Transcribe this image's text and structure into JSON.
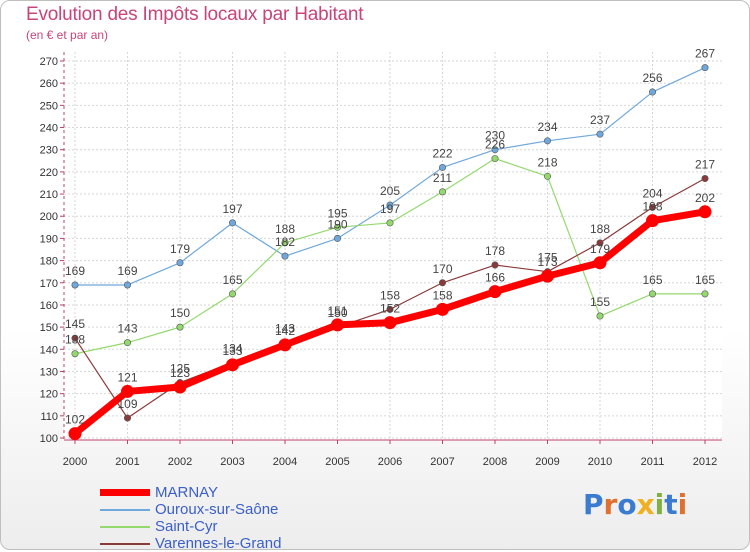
{
  "chart_data": {
    "type": "line",
    "title": "Evolution des Impôts locaux par Habitant",
    "subtitle": "(en € et par an)",
    "xlabel": "",
    "ylabel": "",
    "x": [
      "2000",
      "2001",
      "2002",
      "2003",
      "2004",
      "2005",
      "2006",
      "2007",
      "2008",
      "2009",
      "2010",
      "2011",
      "2012"
    ],
    "ylim": [
      100,
      270
    ],
    "yticks": [
      100,
      110,
      120,
      130,
      140,
      150,
      160,
      170,
      180,
      190,
      200,
      210,
      220,
      230,
      240,
      250,
      260,
      270
    ],
    "grid": true,
    "legend_position": "bottom-left",
    "series": [
      {
        "name": "MARNAY",
        "color": "#ff0000",
        "values": [
          102,
          121,
          123,
          133,
          142,
          151,
          152,
          158,
          166,
          173,
          179,
          198,
          202
        ],
        "labels": [
          "102",
          "121",
          "123",
          "133",
          "142",
          "151",
          "152",
          "158",
          "166",
          "173",
          "179",
          "198",
          "202"
        ]
      },
      {
        "name": "Ouroux-sur-Saône",
        "color": "#6fa8dc",
        "values": [
          169,
          169,
          179,
          197,
          182,
          190,
          205,
          222,
          230,
          234,
          237,
          256,
          267
        ],
        "labels": [
          "169",
          "169",
          "179",
          "197",
          "182",
          "190",
          "205",
          "222",
          "230",
          "234",
          "237",
          "256",
          "267"
        ]
      },
      {
        "name": "Saint-Cyr",
        "color": "#93d96e",
        "values": [
          138,
          143,
          150,
          165,
          188,
          195,
          197,
          211,
          226,
          218,
          155,
          165,
          165
        ],
        "labels": [
          "138",
          "143",
          "150",
          "165",
          "188",
          "195",
          "197",
          "211",
          "226",
          "218",
          "155",
          "165",
          "165"
        ]
      },
      {
        "name": "Varennes-le-Grand",
        "color": "#8b3a3a",
        "values": [
          145,
          109,
          125,
          134,
          143,
          150,
          158,
          170,
          178,
          175,
          188,
          204,
          217
        ],
        "labels": [
          "145",
          "109",
          "125",
          "134",
          "143",
          "150",
          "158",
          "170",
          "178",
          "175",
          "188",
          "204",
          "217"
        ]
      }
    ]
  },
  "legend": {
    "items": [
      {
        "label": "MARNAY",
        "color": "#ff0000"
      },
      {
        "label": "Ouroux-sur-Saône",
        "color": "#6fa8dc"
      },
      {
        "label": "Saint-Cyr",
        "color": "#93d96e"
      },
      {
        "label": "Varennes-le-Grand",
        "color": "#8b3a3a"
      }
    ]
  },
  "logo": {
    "letters": [
      "P",
      "r",
      "o",
      "x",
      "i",
      "t",
      "i"
    ]
  }
}
